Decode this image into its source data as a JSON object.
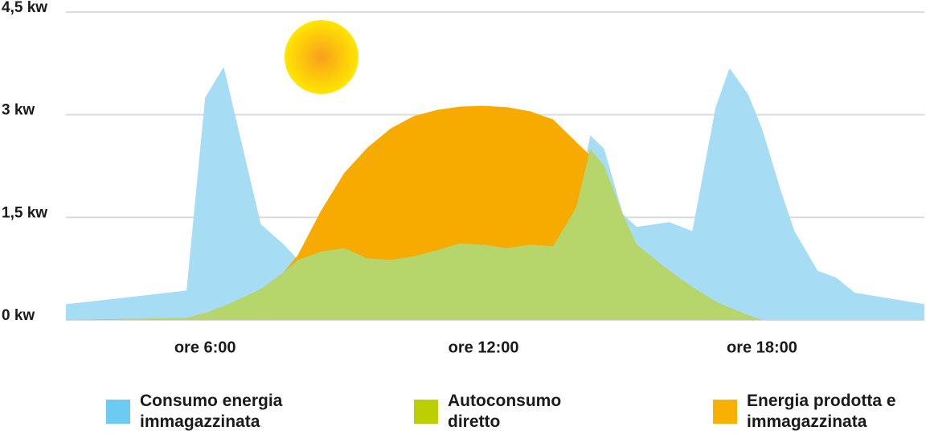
{
  "chart_data": {
    "type": "area",
    "x": [
      3,
      5.6,
      6.0,
      6.4,
      7.2,
      7.7,
      8.0,
      8.5,
      9.0,
      9.5,
      10.0,
      10.5,
      11.0,
      11.5,
      12.0,
      12.5,
      13.0,
      13.5,
      14.0,
      14.3,
      14.6,
      15.0,
      15.3,
      16.0,
      16.5,
      17.0,
      17.3,
      17.7,
      18.0,
      18.4,
      18.7,
      19.2,
      19.6,
      20.0,
      21.5
    ],
    "series": [
      {
        "name": "Consumo energia immagazzinata",
        "color": "#a6dcf4",
        "legend_color": "#6ccbf3",
        "values": [
          0.23,
          0.43,
          3.25,
          3.7,
          1.4,
          1.1,
          0.88,
          1.0,
          1.05,
          0.9,
          0.88,
          0.93,
          1.02,
          1.12,
          1.1,
          1.05,
          1.1,
          1.08,
          1.65,
          2.7,
          2.5,
          1.55,
          1.36,
          1.43,
          1.3,
          3.1,
          3.68,
          3.3,
          2.8,
          1.9,
          1.3,
          0.72,
          0.62,
          0.4,
          0.23
        ]
      },
      {
        "name": "Energia prodotta e immagazzinata",
        "color": "#f7ab00",
        "legend_color": "#f9b000",
        "values": [
          0,
          0.03,
          0.1,
          0.2,
          0.45,
          0.7,
          0.95,
          1.6,
          2.15,
          2.52,
          2.8,
          2.98,
          3.07,
          3.12,
          3.13,
          3.11,
          3.05,
          2.93,
          2.6,
          2.4,
          2.1,
          1.4,
          1.1,
          0.72,
          0.48,
          0.27,
          0.18,
          0.07,
          0,
          0,
          0,
          0,
          0,
          0,
          0
        ]
      },
      {
        "name": "Autoconsumo diretto",
        "color": "#b6d56b",
        "legend_color": "#bccf00",
        "values": [
          0,
          0.03,
          0.1,
          0.2,
          0.45,
          0.7,
          0.88,
          1.0,
          1.05,
          0.9,
          0.88,
          0.93,
          1.02,
          1.12,
          1.1,
          1.05,
          1.1,
          1.08,
          1.65,
          2.5,
          2.25,
          1.55,
          1.1,
          0.72,
          0.48,
          0.27,
          0.18,
          0.07,
          0,
          0,
          0,
          0,
          0,
          0,
          0
        ]
      }
    ],
    "legend_order": [
      0,
      2,
      1
    ],
    "xlim": [
      3,
      21.5
    ],
    "xticks": [
      {
        "value": 6,
        "label": "ore 6:00"
      },
      {
        "value": 12,
        "label": "ore 12:00"
      },
      {
        "value": 18,
        "label": "ore 18:00"
      }
    ],
    "ylim": [
      0,
      4.5
    ],
    "yticks": [
      {
        "value": 0,
        "label": "0 kw"
      },
      {
        "value": 1.5,
        "label": "1,5 kw"
      },
      {
        "value": 3,
        "label": "3 kw"
      },
      {
        "value": 4.5,
        "label": "4,5 kw"
      }
    ],
    "grid": true
  }
}
